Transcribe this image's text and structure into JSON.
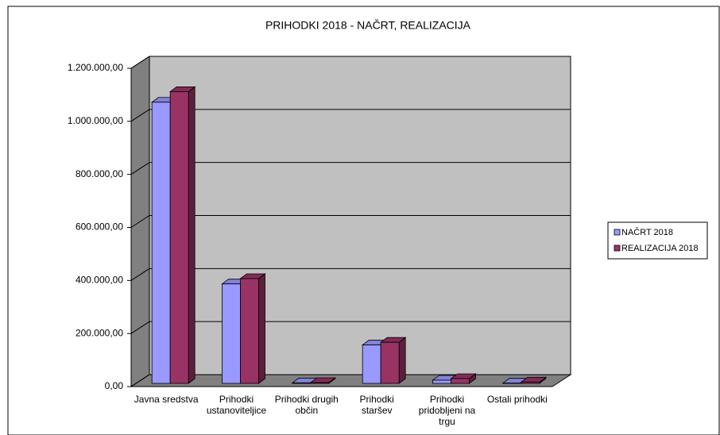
{
  "chart_data": {
    "type": "bar3d",
    "title": "PRIHODKI 2018 - NAČRT,  REALIZACIJA",
    "categories": [
      "Javna sredstva",
      "Prihodki ustanoviteljice",
      "Prihodki drugih občin",
      "Prihodki staršev",
      "Prihodki pridobljeni na trgu",
      "Ostali prihodki"
    ],
    "series": [
      {
        "name": "NAČRT 2018",
        "color": "#9999ff",
        "values": [
          1060000,
          375000,
          2000,
          145000,
          12000,
          1000
        ]
      },
      {
        "name": "REALIZACIJA 2018",
        "color": "#993366",
        "values": [
          1100000,
          395000,
          3000,
          155000,
          18000,
          5000
        ]
      }
    ],
    "ylim": [
      0,
      1200000
    ],
    "yticks": [
      {
        "value": 0,
        "label": "0,00"
      },
      {
        "value": 200000,
        "label": "200.000,00"
      },
      {
        "value": 400000,
        "label": "400.000,00"
      },
      {
        "value": 600000,
        "label": "600.000,00"
      },
      {
        "value": 800000,
        "label": "800.000,00"
      },
      {
        "value": 1000000,
        "label": "1.000.000,00"
      },
      {
        "value": 1200000,
        "label": "1.200.000,00"
      }
    ],
    "grid": true,
    "legend": "right"
  }
}
